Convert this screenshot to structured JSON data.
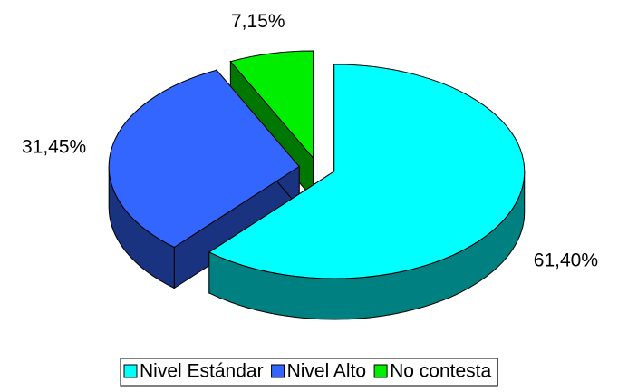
{
  "chart_data": {
    "type": "pie",
    "categories": [
      "Nivel Estándar",
      "Nivel Alto",
      "No contesta"
    ],
    "values": [
      61.4,
      31.45,
      7.15
    ],
    "value_labels": [
      "61,40%",
      "31,45%",
      "7,15%"
    ],
    "colors": [
      "#00ffff",
      "#3366ff",
      "#00ee00"
    ],
    "legend": "bottom"
  }
}
